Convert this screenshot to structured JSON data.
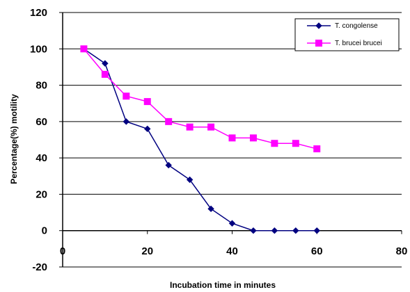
{
  "chart_data": {
    "type": "line",
    "title": "",
    "xlabel": "Incubation time in minutes",
    "ylabel": "Percentage(%) motility",
    "xlim": [
      0,
      80
    ],
    "ylim": [
      -20,
      120
    ],
    "x_ticks": [
      0,
      20,
      40,
      60,
      80
    ],
    "y_ticks": [
      -20,
      0,
      20,
      40,
      60,
      80,
      100,
      120
    ],
    "x_tick_labels": [
      "0",
      "20",
      "40",
      "60",
      "80"
    ],
    "y_tick_labels": [
      "-20",
      "0",
      "20",
      "40",
      "60",
      "80",
      "100",
      "120"
    ],
    "grid": "horizontal",
    "legend_position": "top-right",
    "series": [
      {
        "name": "T. congolense",
        "color": "#000080",
        "marker": "diamond",
        "x": [
          5,
          10,
          15,
          20,
          25,
          30,
          35,
          40,
          45,
          50,
          55,
          60
        ],
        "y": [
          100,
          92,
          60,
          56,
          36,
          28,
          12,
          4,
          0,
          0,
          0,
          0
        ]
      },
      {
        "name": "T. brucei brucei",
        "color": "#ff00ff",
        "marker": "square",
        "x": [
          5,
          10,
          15,
          20,
          25,
          30,
          35,
          40,
          45,
          50,
          55,
          60
        ],
        "y": [
          100,
          86,
          74,
          71,
          60,
          57,
          57,
          51,
          51,
          48,
          48,
          45
        ]
      }
    ]
  }
}
